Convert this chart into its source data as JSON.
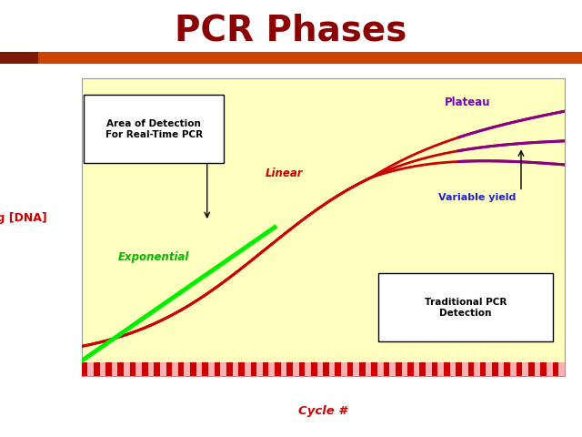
{
  "title": "PCR Phases",
  "title_color": "#8B0000",
  "title_fontsize": 28,
  "title_fontweight": "bold",
  "bg_color": "#FFFFFF",
  "chart_bg_color": "#FFFFC0",
  "header_bar_left_color": "#7B1A00",
  "header_bar_right_color": "#CC4400",
  "xlabel": "Cycle #",
  "xlabel_color": "#CC0000",
  "ylabel": "Log [DNA]",
  "ylabel_color": "#CC0000",
  "curve_color": "#CC0000",
  "green_color": "#00EE00",
  "purple_color": "#880088",
  "exp_label": "Exponential",
  "exp_color": "#00BB00",
  "linear_label": "Linear",
  "linear_color": "#CC0000",
  "plateau_label": "Plateau",
  "plateau_color": "#7700BB",
  "var_yield_label": "Variable yield",
  "var_yield_color": "#2222CC",
  "detect_box_text": "Area of Detection\nFor Real-Time PCR",
  "trad_box_text": "Traditional PCR\nDetection",
  "bottom_bar_pink": "#FFB0B0",
  "bottom_bar_red": "#CC0000"
}
